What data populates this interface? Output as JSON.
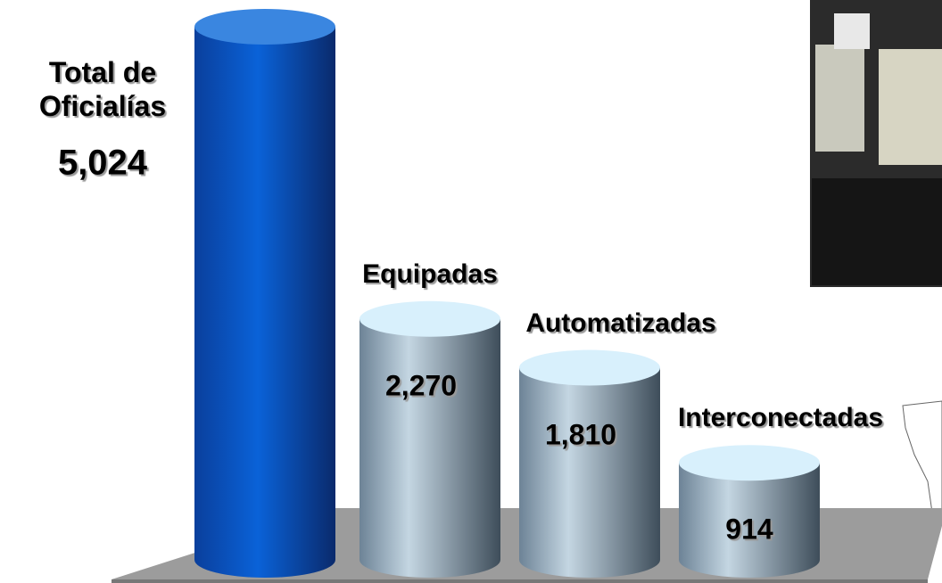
{
  "chart_data": {
    "type": "bar",
    "categories": [
      "Total de Oficialías",
      "Equipadas",
      "Automatizadas",
      "Interconectadas"
    ],
    "values": [
      5024,
      2270,
      1810,
      914
    ],
    "value_labels": [
      "5,024",
      "2,270",
      "1,810",
      "914"
    ],
    "colors": [
      "#0a56c8",
      "#9fb3c4",
      "#9fb3c4",
      "#9fb3c4"
    ]
  }
}
